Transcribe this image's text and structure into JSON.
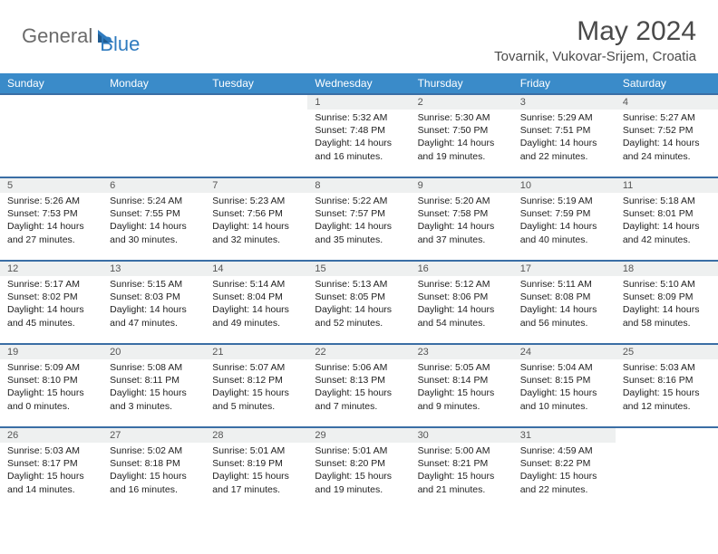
{
  "brand": {
    "part1": "General",
    "part2": "Blue"
  },
  "title": "May 2024",
  "location": "Tovarnik, Vukovar-Srijem, Croatia",
  "colors": {
    "header_bg": "#3a8bc9",
    "header_text": "#ffffff",
    "row_divider": "#3a6ea5",
    "daynum_bg": "#eef0f0",
    "brand_gray": "#6b6b6b",
    "brand_blue": "#2f7bbf"
  },
  "weekdays": [
    "Sunday",
    "Monday",
    "Tuesday",
    "Wednesday",
    "Thursday",
    "Friday",
    "Saturday"
  ],
  "weeks": [
    [
      {
        "n": "",
        "sr": "",
        "ss": "",
        "dl": ""
      },
      {
        "n": "",
        "sr": "",
        "ss": "",
        "dl": ""
      },
      {
        "n": "",
        "sr": "",
        "ss": "",
        "dl": ""
      },
      {
        "n": "1",
        "sr": "5:32 AM",
        "ss": "7:48 PM",
        "dl": "14 hours and 16 minutes."
      },
      {
        "n": "2",
        "sr": "5:30 AM",
        "ss": "7:50 PM",
        "dl": "14 hours and 19 minutes."
      },
      {
        "n": "3",
        "sr": "5:29 AM",
        "ss": "7:51 PM",
        "dl": "14 hours and 22 minutes."
      },
      {
        "n": "4",
        "sr": "5:27 AM",
        "ss": "7:52 PM",
        "dl": "14 hours and 24 minutes."
      }
    ],
    [
      {
        "n": "5",
        "sr": "5:26 AM",
        "ss": "7:53 PM",
        "dl": "14 hours and 27 minutes."
      },
      {
        "n": "6",
        "sr": "5:24 AM",
        "ss": "7:55 PM",
        "dl": "14 hours and 30 minutes."
      },
      {
        "n": "7",
        "sr": "5:23 AM",
        "ss": "7:56 PM",
        "dl": "14 hours and 32 minutes."
      },
      {
        "n": "8",
        "sr": "5:22 AM",
        "ss": "7:57 PM",
        "dl": "14 hours and 35 minutes."
      },
      {
        "n": "9",
        "sr": "5:20 AM",
        "ss": "7:58 PM",
        "dl": "14 hours and 37 minutes."
      },
      {
        "n": "10",
        "sr": "5:19 AM",
        "ss": "7:59 PM",
        "dl": "14 hours and 40 minutes."
      },
      {
        "n": "11",
        "sr": "5:18 AM",
        "ss": "8:01 PM",
        "dl": "14 hours and 42 minutes."
      }
    ],
    [
      {
        "n": "12",
        "sr": "5:17 AM",
        "ss": "8:02 PM",
        "dl": "14 hours and 45 minutes."
      },
      {
        "n": "13",
        "sr": "5:15 AM",
        "ss": "8:03 PM",
        "dl": "14 hours and 47 minutes."
      },
      {
        "n": "14",
        "sr": "5:14 AM",
        "ss": "8:04 PM",
        "dl": "14 hours and 49 minutes."
      },
      {
        "n": "15",
        "sr": "5:13 AM",
        "ss": "8:05 PM",
        "dl": "14 hours and 52 minutes."
      },
      {
        "n": "16",
        "sr": "5:12 AM",
        "ss": "8:06 PM",
        "dl": "14 hours and 54 minutes."
      },
      {
        "n": "17",
        "sr": "5:11 AM",
        "ss": "8:08 PM",
        "dl": "14 hours and 56 minutes."
      },
      {
        "n": "18",
        "sr": "5:10 AM",
        "ss": "8:09 PM",
        "dl": "14 hours and 58 minutes."
      }
    ],
    [
      {
        "n": "19",
        "sr": "5:09 AM",
        "ss": "8:10 PM",
        "dl": "15 hours and 0 minutes."
      },
      {
        "n": "20",
        "sr": "5:08 AM",
        "ss": "8:11 PM",
        "dl": "15 hours and 3 minutes."
      },
      {
        "n": "21",
        "sr": "5:07 AM",
        "ss": "8:12 PM",
        "dl": "15 hours and 5 minutes."
      },
      {
        "n": "22",
        "sr": "5:06 AM",
        "ss": "8:13 PM",
        "dl": "15 hours and 7 minutes."
      },
      {
        "n": "23",
        "sr": "5:05 AM",
        "ss": "8:14 PM",
        "dl": "15 hours and 9 minutes."
      },
      {
        "n": "24",
        "sr": "5:04 AM",
        "ss": "8:15 PM",
        "dl": "15 hours and 10 minutes."
      },
      {
        "n": "25",
        "sr": "5:03 AM",
        "ss": "8:16 PM",
        "dl": "15 hours and 12 minutes."
      }
    ],
    [
      {
        "n": "26",
        "sr": "5:03 AM",
        "ss": "8:17 PM",
        "dl": "15 hours and 14 minutes."
      },
      {
        "n": "27",
        "sr": "5:02 AM",
        "ss": "8:18 PM",
        "dl": "15 hours and 16 minutes."
      },
      {
        "n": "28",
        "sr": "5:01 AM",
        "ss": "8:19 PM",
        "dl": "15 hours and 17 minutes."
      },
      {
        "n": "29",
        "sr": "5:01 AM",
        "ss": "8:20 PM",
        "dl": "15 hours and 19 minutes."
      },
      {
        "n": "30",
        "sr": "5:00 AM",
        "ss": "8:21 PM",
        "dl": "15 hours and 21 minutes."
      },
      {
        "n": "31",
        "sr": "4:59 AM",
        "ss": "8:22 PM",
        "dl": "15 hours and 22 minutes."
      },
      {
        "n": "",
        "sr": "",
        "ss": "",
        "dl": ""
      }
    ]
  ],
  "labels": {
    "sunrise": "Sunrise:",
    "sunset": "Sunset:",
    "daylight": "Daylight:"
  }
}
